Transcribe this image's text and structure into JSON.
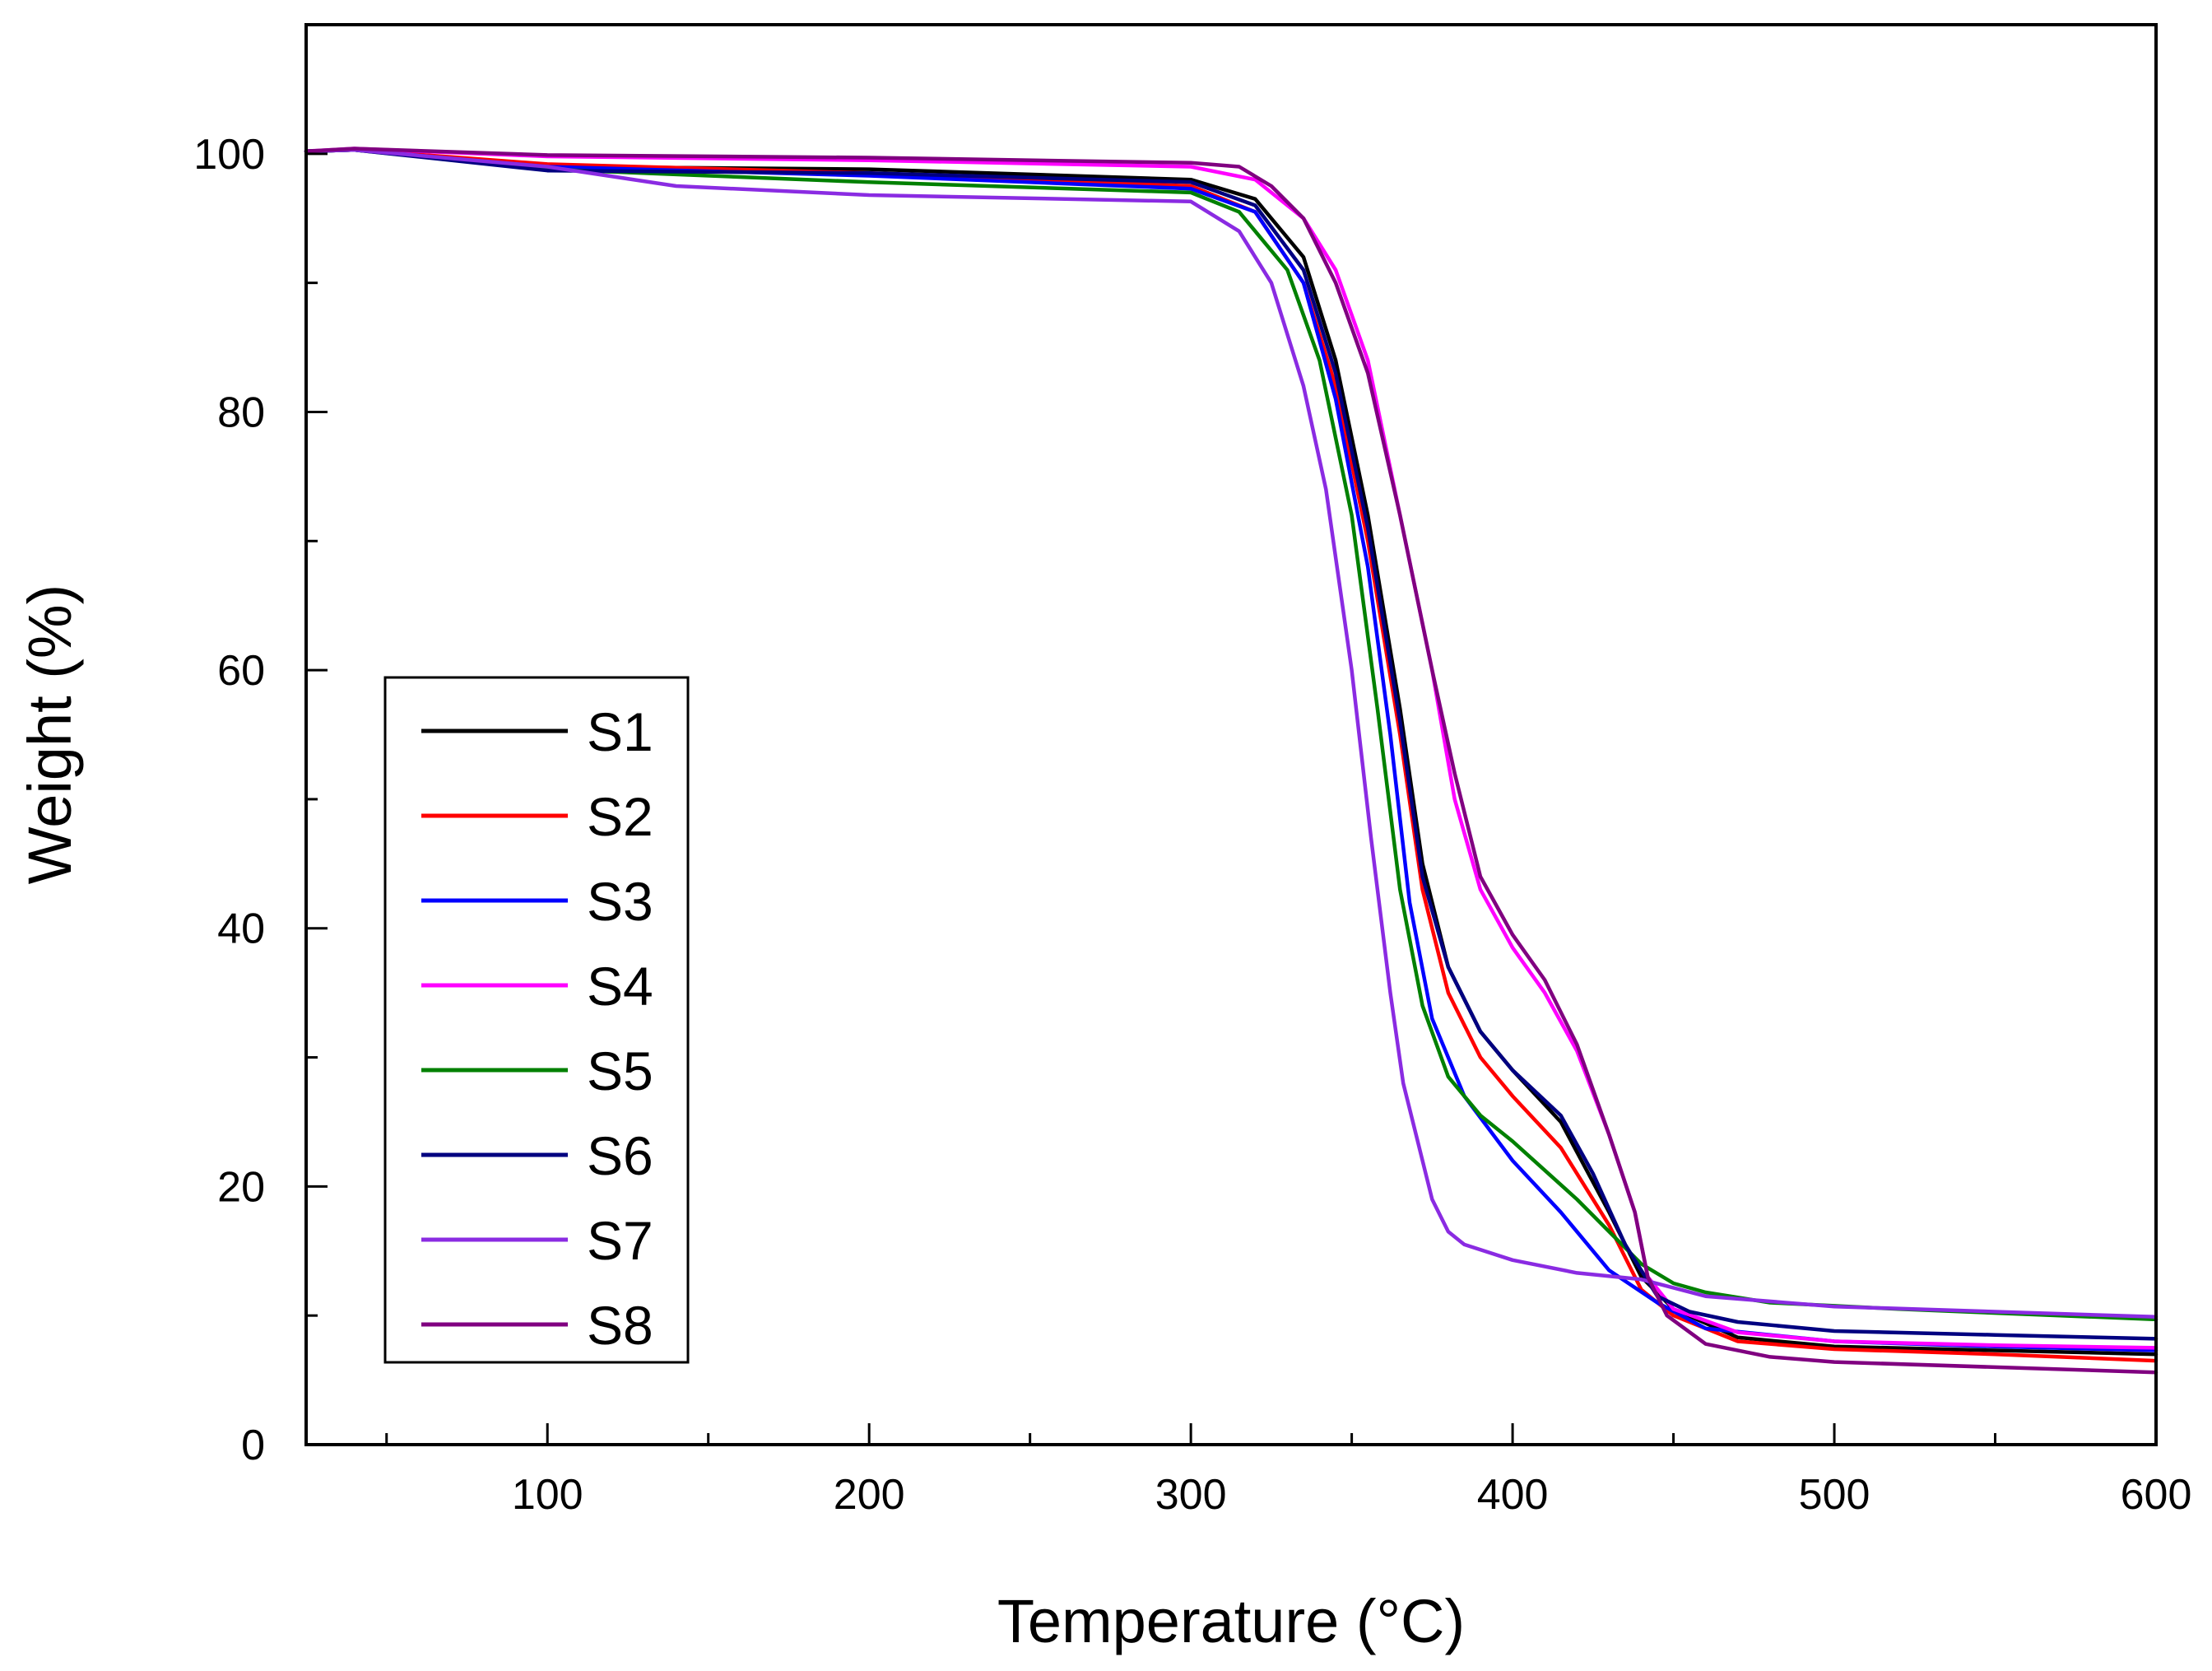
{
  "chart_data": {
    "type": "line",
    "title": "",
    "xlabel": "Temperature (°C)",
    "ylabel": "Weight (%)",
    "xlim": [
      25,
      600
    ],
    "ylim": [
      0,
      110
    ],
    "xticks": [
      100,
      200,
      300,
      400,
      500,
      600
    ],
    "yticks": [
      0,
      20,
      40,
      60,
      80,
      100
    ],
    "x_minor_step": 50,
    "y_minor_step": 10,
    "grid": false,
    "legend_position": "middle-left",
    "series": [
      {
        "name": "S1",
        "color": "#000000",
        "points": [
          [
            25,
            100.2
          ],
          [
            40,
            100.3
          ],
          [
            100,
            99.0
          ],
          [
            200,
            98.8
          ],
          [
            300,
            98.0
          ],
          [
            320,
            96.5
          ],
          [
            335,
            92.0
          ],
          [
            345,
            84.0
          ],
          [
            355,
            72.0
          ],
          [
            365,
            57.0
          ],
          [
            372,
            45.0
          ],
          [
            380,
            37.0
          ],
          [
            390,
            32.0
          ],
          [
            400,
            29.0
          ],
          [
            415,
            25.0
          ],
          [
            430,
            18.0
          ],
          [
            440,
            13.0
          ],
          [
            450,
            10.5
          ],
          [
            470,
            8.3
          ],
          [
            500,
            7.6
          ],
          [
            550,
            7.3
          ],
          [
            600,
            7.0
          ]
        ]
      },
      {
        "name": "S2",
        "color": "#ff0000",
        "points": [
          [
            25,
            100.2
          ],
          [
            40,
            100.3
          ],
          [
            100,
            99.2
          ],
          [
            200,
            98.5
          ],
          [
            300,
            97.5
          ],
          [
            320,
            95.5
          ],
          [
            335,
            90.0
          ],
          [
            345,
            82.0
          ],
          [
            355,
            70.0
          ],
          [
            365,
            55.0
          ],
          [
            372,
            43.0
          ],
          [
            380,
            35.0
          ],
          [
            390,
            30.0
          ],
          [
            400,
            27.0
          ],
          [
            415,
            23.0
          ],
          [
            430,
            17.0
          ],
          [
            440,
            12.0
          ],
          [
            450,
            10.0
          ],
          [
            470,
            8.0
          ],
          [
            500,
            7.4
          ],
          [
            550,
            7.0
          ],
          [
            600,
            6.5
          ]
        ]
      },
      {
        "name": "S3",
        "color": "#0000ff",
        "points": [
          [
            25,
            100.2
          ],
          [
            40,
            100.3
          ],
          [
            100,
            99.0
          ],
          [
            200,
            98.3
          ],
          [
            300,
            97.3
          ],
          [
            320,
            95.5
          ],
          [
            335,
            90.0
          ],
          [
            345,
            81.0
          ],
          [
            355,
            68.0
          ],
          [
            362,
            55.0
          ],
          [
            368,
            42.0
          ],
          [
            375,
            33.0
          ],
          [
            385,
            27.0
          ],
          [
            400,
            22.0
          ],
          [
            415,
            18.0
          ],
          [
            430,
            13.5
          ],
          [
            445,
            11.0
          ],
          [
            460,
            9.0
          ],
          [
            500,
            8.0
          ],
          [
            550,
            7.6
          ],
          [
            600,
            7.3
          ]
        ]
      },
      {
        "name": "S4",
        "color": "#ff00ff",
        "points": [
          [
            25,
            100.2
          ],
          [
            40,
            100.4
          ],
          [
            100,
            99.8
          ],
          [
            200,
            99.5
          ],
          [
            300,
            99.0
          ],
          [
            320,
            98.0
          ],
          [
            335,
            95.0
          ],
          [
            345,
            91.0
          ],
          [
            355,
            84.0
          ],
          [
            365,
            72.0
          ],
          [
            375,
            60.0
          ],
          [
            382,
            50.0
          ],
          [
            390,
            43.0
          ],
          [
            400,
            38.5
          ],
          [
            410,
            35.0
          ],
          [
            420,
            30.5
          ],
          [
            430,
            24.0
          ],
          [
            438,
            18.0
          ],
          [
            442,
            13.0
          ],
          [
            450,
            10.5
          ],
          [
            470,
            8.7
          ],
          [
            500,
            8.0
          ],
          [
            550,
            7.7
          ],
          [
            600,
            7.5
          ]
        ]
      },
      {
        "name": "S5",
        "color": "#008000",
        "points": [
          [
            25,
            100.2
          ],
          [
            40,
            100.3
          ],
          [
            100,
            98.8
          ],
          [
            200,
            97.8
          ],
          [
            300,
            97.0
          ],
          [
            315,
            95.5
          ],
          [
            330,
            91.0
          ],
          [
            340,
            84.0
          ],
          [
            350,
            72.0
          ],
          [
            358,
            57.0
          ],
          [
            365,
            43.0
          ],
          [
            372,
            34.0
          ],
          [
            380,
            28.5
          ],
          [
            390,
            25.5
          ],
          [
            400,
            23.5
          ],
          [
            420,
            19.0
          ],
          [
            440,
            14.0
          ],
          [
            450,
            12.5
          ],
          [
            460,
            11.8
          ],
          [
            480,
            11.0
          ],
          [
            520,
            10.5
          ],
          [
            600,
            9.7
          ]
        ]
      },
      {
        "name": "S6",
        "color": "#000080",
        "points": [
          [
            25,
            100.2
          ],
          [
            40,
            100.3
          ],
          [
            100,
            98.7
          ],
          [
            200,
            98.5
          ],
          [
            300,
            97.8
          ],
          [
            320,
            96.0
          ],
          [
            335,
            91.0
          ],
          [
            345,
            83.0
          ],
          [
            355,
            71.0
          ],
          [
            365,
            56.0
          ],
          [
            372,
            44.0
          ],
          [
            380,
            37.0
          ],
          [
            390,
            32.0
          ],
          [
            400,
            29.0
          ],
          [
            415,
            25.5
          ],
          [
            425,
            21.0
          ],
          [
            435,
            15.5
          ],
          [
            445,
            11.5
          ],
          [
            455,
            10.3
          ],
          [
            470,
            9.5
          ],
          [
            500,
            8.8
          ],
          [
            550,
            8.5
          ],
          [
            600,
            8.2
          ]
        ]
      },
      {
        "name": "S7",
        "color": "#8a2be2",
        "points": [
          [
            25,
            100.2
          ],
          [
            40,
            100.3
          ],
          [
            100,
            99.0
          ],
          [
            140,
            97.5
          ],
          [
            200,
            96.8
          ],
          [
            300,
            96.3
          ],
          [
            315,
            94.0
          ],
          [
            325,
            90.0
          ],
          [
            335,
            82.0
          ],
          [
            342,
            74.0
          ],
          [
            350,
            60.0
          ],
          [
            356,
            47.0
          ],
          [
            362,
            35.0
          ],
          [
            366,
            28.0
          ],
          [
            370,
            24.0
          ],
          [
            375,
            19.0
          ],
          [
            380,
            16.5
          ],
          [
            385,
            15.5
          ],
          [
            400,
            14.3
          ],
          [
            420,
            13.3
          ],
          [
            440,
            12.8
          ],
          [
            460,
            11.5
          ],
          [
            500,
            10.7
          ],
          [
            550,
            10.3
          ],
          [
            600,
            9.9
          ]
        ]
      },
      {
        "name": "S8",
        "color": "#800080",
        "points": [
          [
            25,
            100.2
          ],
          [
            40,
            100.4
          ],
          [
            100,
            99.9
          ],
          [
            200,
            99.7
          ],
          [
            300,
            99.3
          ],
          [
            315,
            99.0
          ],
          [
            325,
            97.5
          ],
          [
            335,
            95.0
          ],
          [
            345,
            90.0
          ],
          [
            355,
            83.0
          ],
          [
            365,
            72.0
          ],
          [
            375,
            60.0
          ],
          [
            382,
            52.0
          ],
          [
            390,
            44.0
          ],
          [
            400,
            39.5
          ],
          [
            410,
            36.0
          ],
          [
            420,
            31.0
          ],
          [
            430,
            24.0
          ],
          [
            438,
            18.0
          ],
          [
            442,
            13.0
          ],
          [
            448,
            10.0
          ],
          [
            460,
            7.8
          ],
          [
            480,
            6.8
          ],
          [
            500,
            6.4
          ],
          [
            550,
            6.0
          ],
          [
            600,
            5.6
          ]
        ]
      }
    ]
  }
}
